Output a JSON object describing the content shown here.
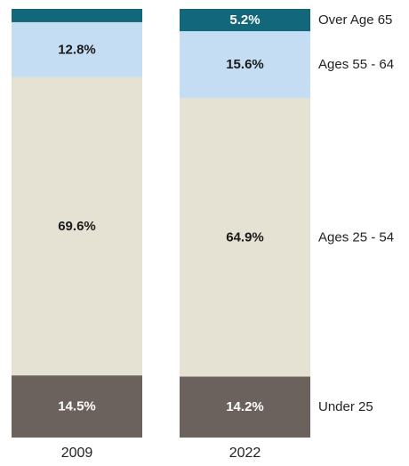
{
  "chart_data": {
    "type": "bar",
    "stacked": true,
    "categories": [
      "2009",
      "2022"
    ],
    "series": [
      {
        "name": "Under 25",
        "values": [
          14.5,
          14.2
        ],
        "labels": [
          "14.5%",
          "14.2%"
        ],
        "color": "#6b625d",
        "label_color": "#ffffff"
      },
      {
        "name": "Ages 25 - 54",
        "values": [
          69.6,
          64.9
        ],
        "labels": [
          "69.6%",
          "64.9%"
        ],
        "color": "#e5e1d3",
        "label_color": "#1a1a1a"
      },
      {
        "name": "Ages 55 - 64",
        "values": [
          12.8,
          15.6
        ],
        "labels": [
          "12.8%",
          "15.6%"
        ],
        "color": "#c4ddf3",
        "label_color": "#1a1a1a"
      },
      {
        "name": "Over Age 65",
        "values": [
          3.1,
          5.2
        ],
        "labels": [
          "",
          "5.2%"
        ],
        "color": "#13677a",
        "label_color": "#ffffff"
      }
    ],
    "ylim": [
      0,
      100
    ],
    "grid": false,
    "legend": "right, aligned with segments",
    "title": "",
    "xlabel": "",
    "ylabel": ""
  }
}
